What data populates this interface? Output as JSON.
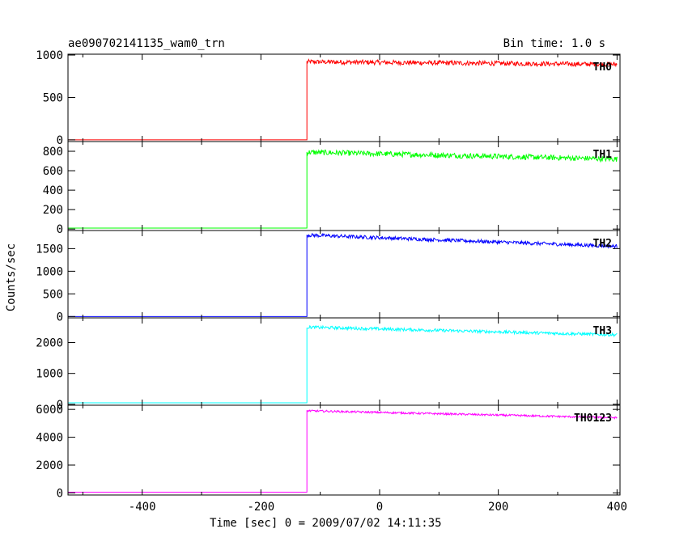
{
  "header": {
    "title": "ae090702141135_wam0_trn",
    "bin_time": "Bin time: 1.0 s"
  },
  "chart_data": {
    "type": "line",
    "title": "ae090702141135_wam0_trn",
    "xlabel": "Time [sec] 0 = 2009/07/02 14:11:35",
    "ylabel": "Counts/sec",
    "xlim": [
      -525,
      405
    ],
    "xticks": [
      -400,
      -200,
      0,
      200,
      400
    ],
    "grid": false,
    "panels": [
      {
        "name": "TH0",
        "color": "#ff0000",
        "ylim": [
          -20,
          1010
        ],
        "yticks": [
          0,
          500,
          1000
        ],
        "segments": [
          {
            "x": [
              -525,
              -122.5
            ],
            "y": [
              0,
              0
            ]
          },
          {
            "x": [
              -122.5,
              400
            ],
            "y": [
              920,
              890
            ]
          }
        ],
        "noise": 28
      },
      {
        "name": "TH1",
        "color": "#00ff00",
        "ylim": [
          -15,
          900
        ],
        "yticks": [
          0,
          200,
          400,
          600,
          800
        ],
        "segments": [
          {
            "x": [
              -525,
              -122.5
            ],
            "y": [
              10,
              10
            ]
          },
          {
            "x": [
              -122.5,
              400
            ],
            "y": [
              790,
              720
            ]
          }
        ],
        "noise": 28
      },
      {
        "name": "TH2",
        "color": "#0000ff",
        "ylim": [
          -30,
          1900
        ],
        "yticks": [
          0,
          500,
          1000,
          1500
        ],
        "segments": [
          {
            "x": [
              -525,
              -122.5
            ],
            "y": [
              0,
              0
            ]
          },
          {
            "x": [
              -122.5,
              400
            ],
            "y": [
              1800,
              1550
            ]
          }
        ],
        "noise": 40
      },
      {
        "name": "TH3",
        "color": "#00ffff",
        "ylim": [
          -30,
          2800
        ],
        "yticks": [
          0,
          1000,
          2000
        ],
        "segments": [
          {
            "x": [
              -525,
              -122.5
            ],
            "y": [
              50,
              50
            ]
          },
          {
            "x": [
              -122.5,
              400
            ],
            "y": [
              2500,
              2250
            ]
          }
        ],
        "noise": 50
      },
      {
        "name": "TH0123",
        "color": "#ff00ff",
        "ylim": [
          -150,
          6300
        ],
        "yticks": [
          0,
          2000,
          4000,
          6000
        ],
        "segments": [
          {
            "x": [
              -525,
              -122.5
            ],
            "y": [
              50,
              50
            ]
          },
          {
            "x": [
              -122.5,
              400
            ],
            "y": [
              5900,
              5400
            ]
          }
        ],
        "noise": 70
      }
    ]
  }
}
